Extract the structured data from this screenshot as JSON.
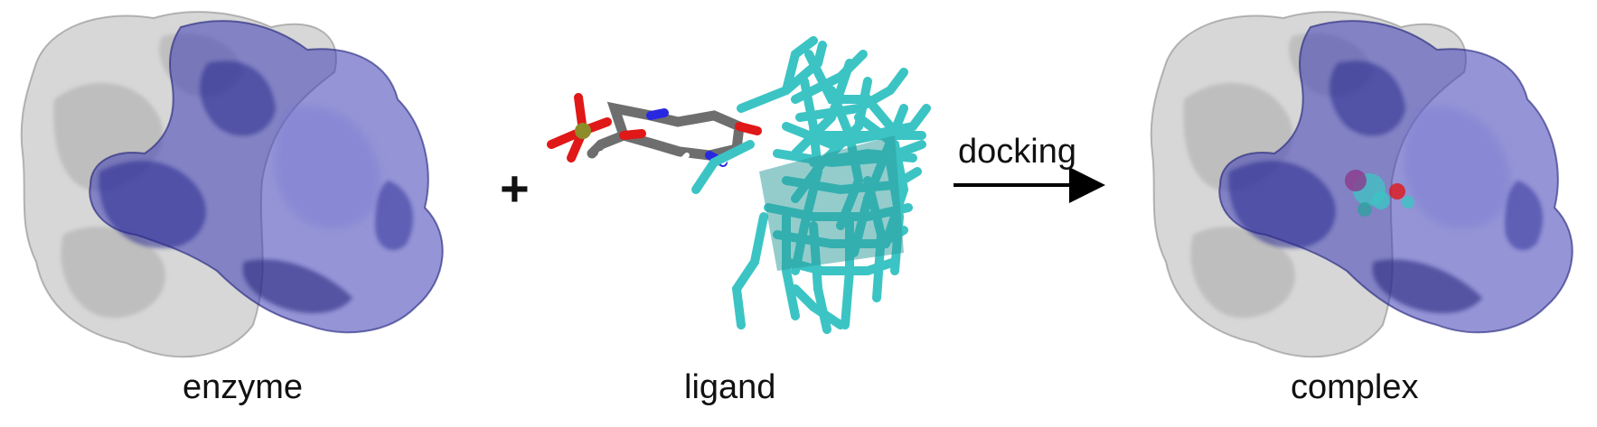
{
  "panels": {
    "enzyme": {
      "label": "enzyme"
    },
    "ligand": {
      "label": "ligand"
    },
    "complex": {
      "label": "complex"
    }
  },
  "operator": {
    "plus": "+"
  },
  "arrow": {
    "label": "docking"
  },
  "colors": {
    "surface_gray": "#9a9a9a",
    "surface_blue": "#3c3cb4",
    "ligand_teal": "#3cc4c4",
    "carbon_gray": "#6e6e6e",
    "oxygen_red": "#e01818",
    "nitrogen_blue": "#2828e0",
    "phosphorus_olive": "#8c8c28",
    "hydrogen_white": "#ffffff"
  }
}
